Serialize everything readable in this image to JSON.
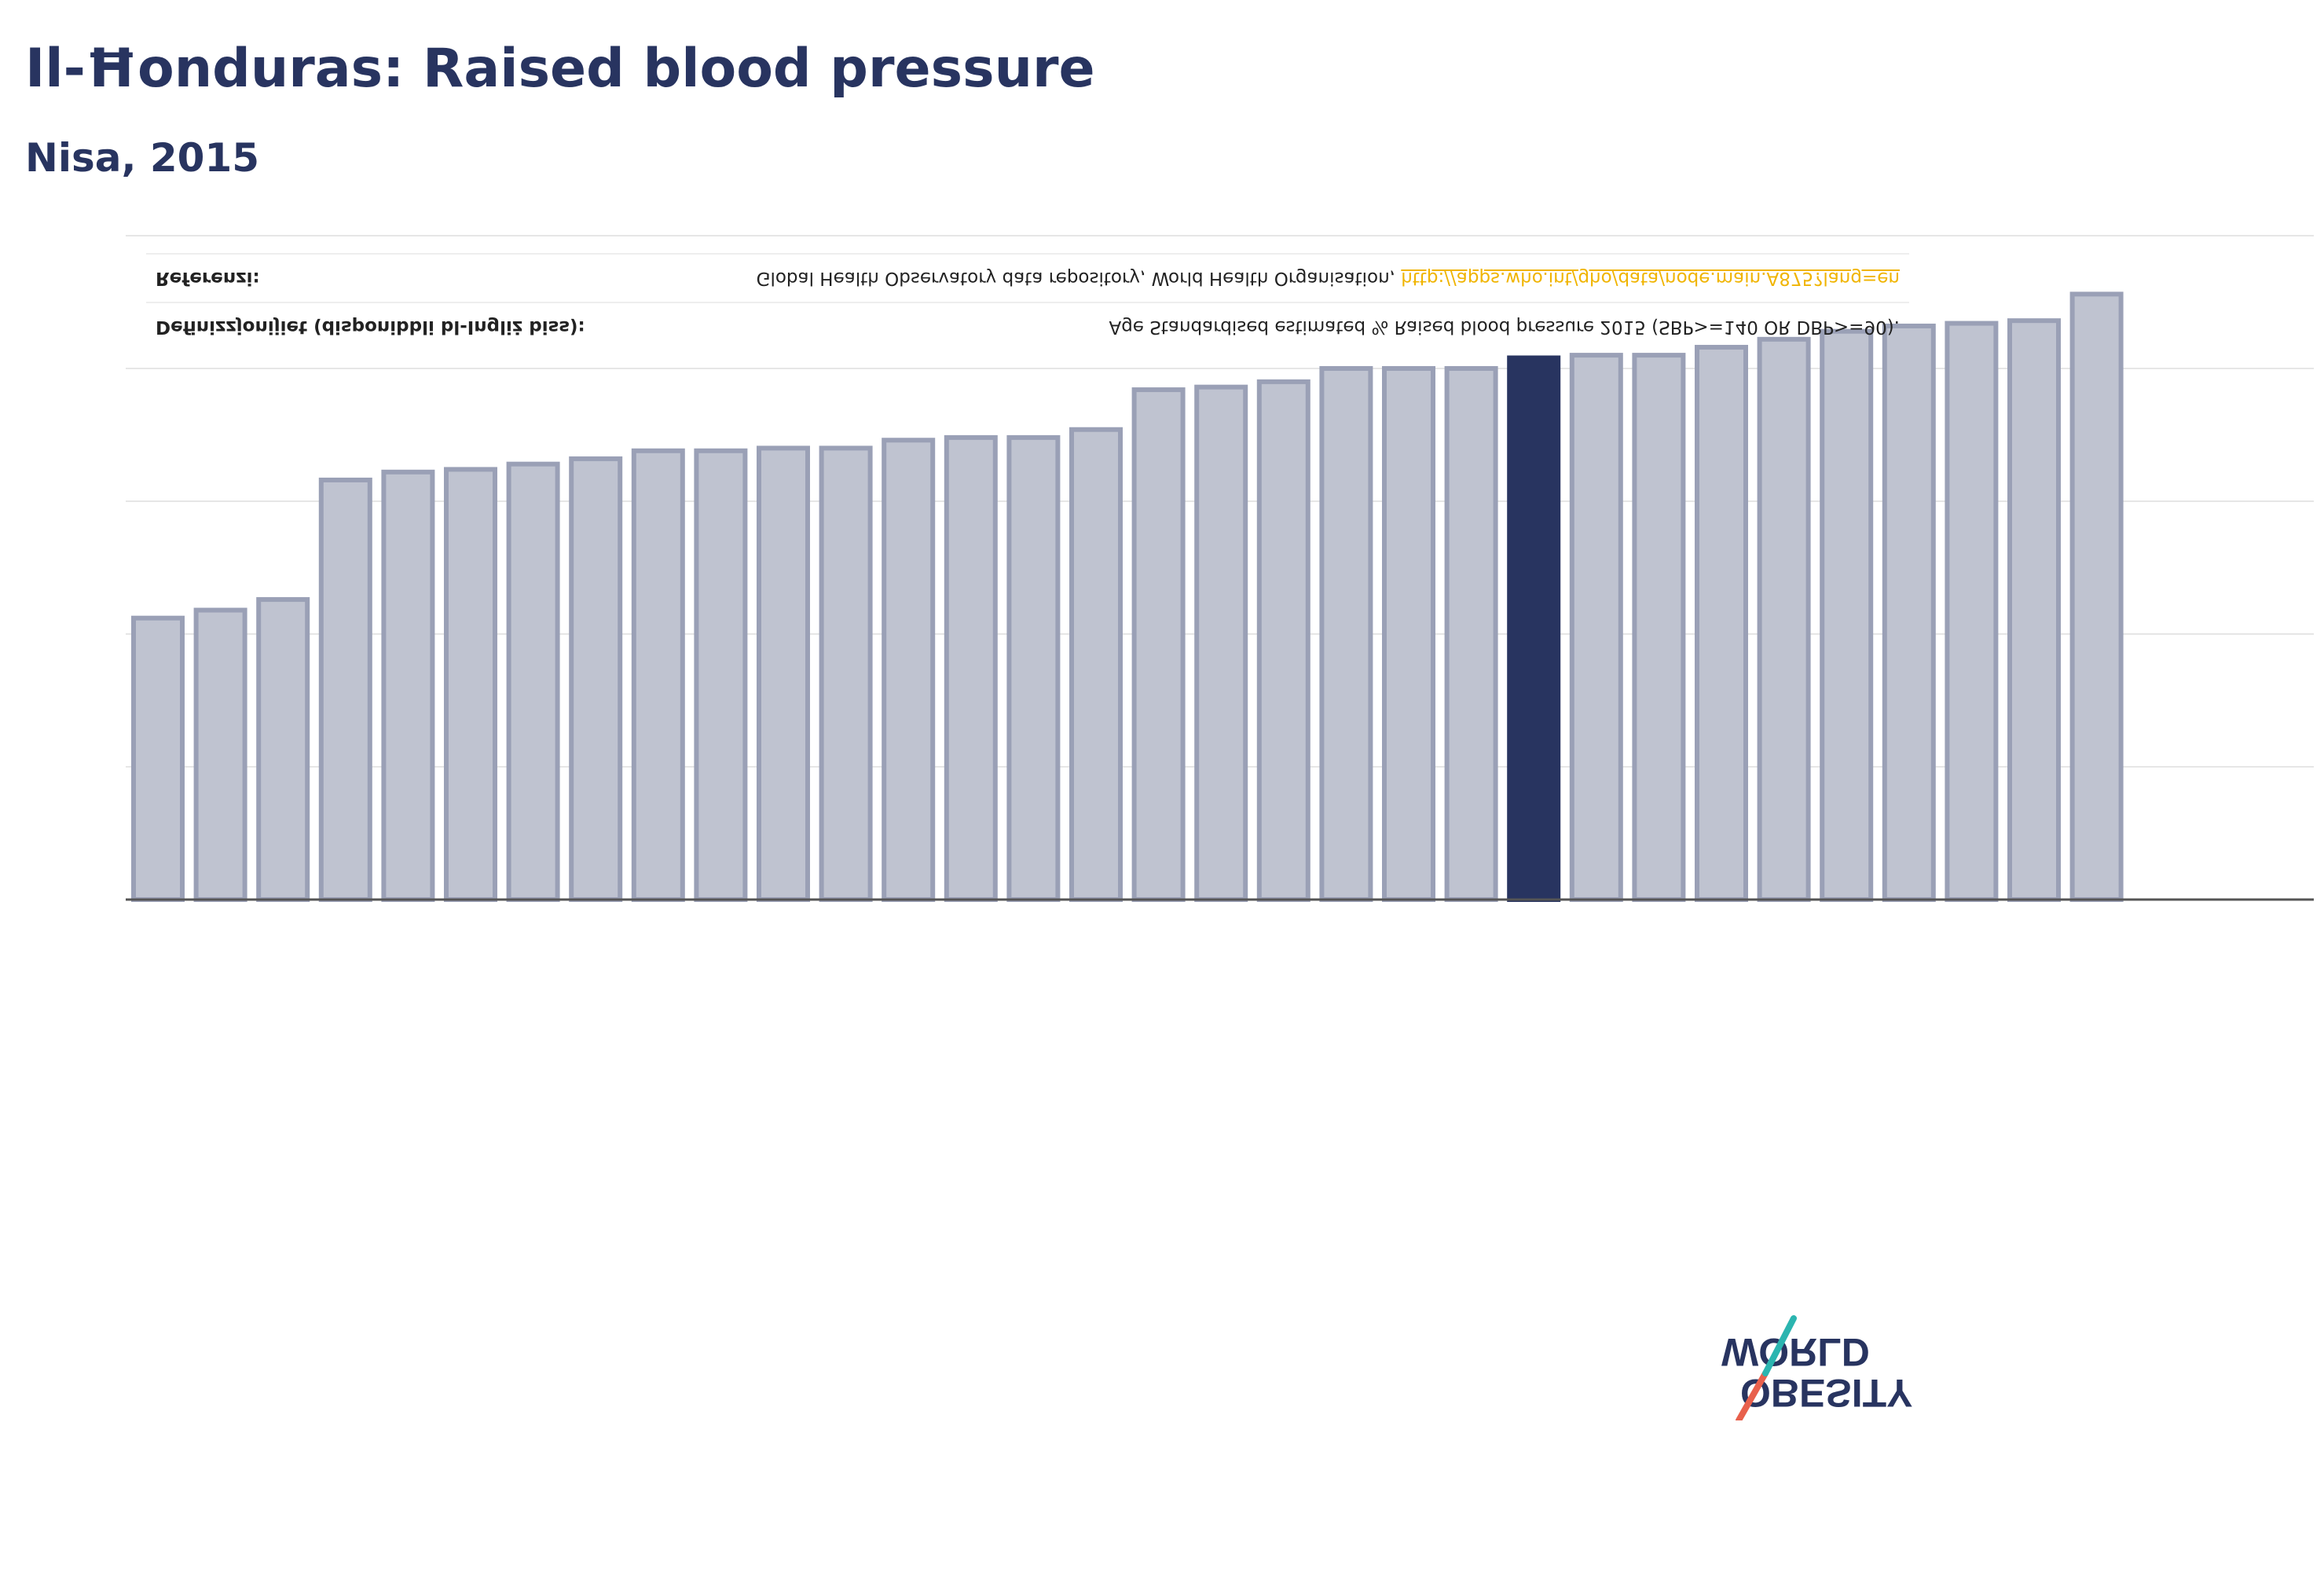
{
  "header": {
    "title": "Il-Ħonduras: Raised blood pressure",
    "subtitle": "Nisa, 2015"
  },
  "info": {
    "definition_label": "Definizzjonijiet (disponibbli bl-Ingliż biss):",
    "definition_text": "Age Standardised estimated % Raised blood pressure 2015 (SBP>=140 OR DBP>=90).",
    "reference_label": "Referenzi:",
    "reference_text": "Global Health Observatory data repository, World Health Organisation,",
    "reference_link": "http://apps.who.int/gho/data/node.main.A875?lang=en"
  },
  "logo": {
    "line1": "OBESITY",
    "line2": "WORLD"
  },
  "colors": {
    "title": "#283460",
    "bar": "#bfc3d0",
    "bar_border": "#9aa0b6",
    "highlight": "#283460",
    "link": "#f0b400",
    "logo_slash_red": "#e8604c",
    "logo_slash_teal": "#2bb5b0"
  },
  "chart_data": {
    "type": "bar",
    "orientation": "vertical",
    "ylim": [
      0,
      25
    ],
    "grid": true,
    "highlight_index": 22,
    "values": [
      10.6,
      10.9,
      11.3,
      15.8,
      16.1,
      16.2,
      16.4,
      16.6,
      16.9,
      16.9,
      17.0,
      17.0,
      17.3,
      17.4,
      17.4,
      17.7,
      19.2,
      19.3,
      19.5,
      20.0,
      20.0,
      20.0,
      20.4,
      20.5,
      20.5,
      20.8,
      21.1,
      21.4,
      21.6,
      21.7,
      21.8,
      22.8
    ]
  }
}
